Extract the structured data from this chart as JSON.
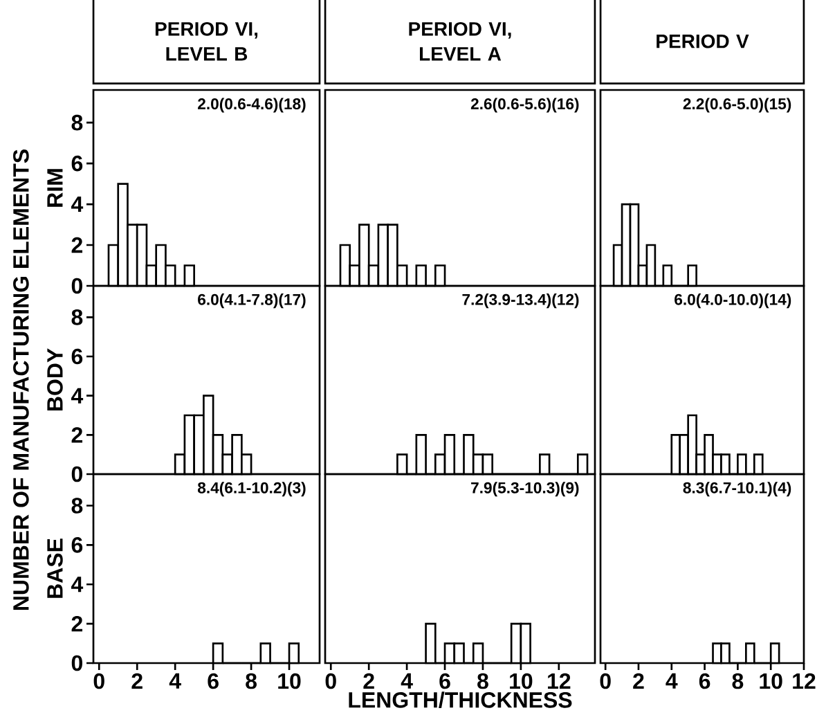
{
  "chart_data": [
    {
      "type": "histogram",
      "title": "PERIOD VI, LEVEL B",
      "ylabel": "RIM",
      "bins": [
        0.5,
        1.0,
        1.5,
        2.0,
        2.5,
        3.0,
        3.5,
        4.0,
        4.5,
        5.0
      ],
      "values": [
        2,
        5,
        3,
        3,
        1,
        2,
        1,
        0,
        1
      ],
      "color": "#000000",
      "xlim": [
        -0.3,
        11.6
      ],
      "ylim": [
        0,
        9.6
      ],
      "xticks": [
        0,
        2,
        4,
        6,
        8,
        10
      ],
      "yticks": [
        0,
        2,
        4,
        6,
        8
      ],
      "tick_labels": "y",
      "annotations": [
        "2.0(0.6-4.6)(18)"
      ]
    },
    {
      "type": "histogram",
      "title": "PERIOD VI, LEVEL A",
      "bins": [
        0.5,
        1.0,
        1.5,
        2.0,
        2.5,
        3.0,
        3.5,
        4.0,
        4.5,
        5.0,
        5.5,
        6.0
      ],
      "values": [
        2,
        1,
        3,
        1,
        3,
        3,
        1,
        0,
        1,
        0,
        1
      ],
      "color": "#000000",
      "xlim": [
        -0.3,
        13.9
      ],
      "ylim": [
        0,
        9.6
      ],
      "xticks": [
        0,
        2,
        4,
        6,
        8,
        10,
        12
      ],
      "yticks": [
        0,
        2,
        4,
        6,
        8
      ],
      "tick_labels": false,
      "annotations": [
        "2.6(0.6-5.6)(16)"
      ]
    },
    {
      "type": "histogram",
      "title": "PERIOD V",
      "bins": [
        0.5,
        1.0,
        1.5,
        2.0,
        2.5,
        3.0,
        3.5,
        4.0,
        4.5,
        5.0,
        5.5
      ],
      "values": [
        2,
        4,
        4,
        1,
        2,
        0,
        1,
        0,
        0,
        1
      ],
      "color": "#000000",
      "xlim": [
        -0.3,
        12
      ],
      "ylim": [
        0,
        9.6
      ],
      "xticks": [
        0,
        2,
        4,
        6,
        8,
        10,
        12
      ],
      "yticks": [
        0,
        2,
        4,
        6,
        8
      ],
      "tick_labels": false,
      "annotations": [
        "2.2(0.6-5.0)(15)"
      ]
    },
    {
      "type": "histogram",
      "ylabel": "BODY",
      "bins": [
        4.0,
        4.5,
        5.0,
        5.5,
        6.0,
        6.5,
        7.0,
        7.5,
        8.0
      ],
      "values": [
        1,
        3,
        3,
        4,
        2,
        1,
        2,
        1
      ],
      "color": "#000000",
      "xlim": [
        -0.3,
        11.6
      ],
      "ylim": [
        0,
        9.6
      ],
      "xticks": [
        0,
        2,
        4,
        6,
        8,
        10
      ],
      "yticks": [
        0,
        2,
        4,
        6,
        8
      ],
      "tick_labels": "y",
      "annotations": [
        "6.0(4.1-7.8)(17)",
        "NUMBER OF MANUFACTURING ELEMENTS"
      ]
    },
    {
      "type": "histogram",
      "bins": [
        3.5,
        4.0,
        4.5,
        5.0,
        5.5,
        6.0,
        6.5,
        7.0,
        7.5,
        8.0,
        8.5,
        9.0,
        9.5,
        10.0,
        10.5,
        11.0,
        11.5,
        12.0,
        12.5,
        13.0,
        13.5
      ],
      "values": [
        1,
        0,
        2,
        0,
        1,
        2,
        0,
        2,
        1,
        1,
        0,
        0,
        0,
        0,
        0,
        1,
        0,
        0,
        0,
        1
      ],
      "color": "#000000",
      "xlim": [
        -0.3,
        13.9
      ],
      "ylim": [
        0,
        9.6
      ],
      "xticks": [
        0,
        2,
        4,
        6,
        8,
        10,
        12
      ],
      "yticks": [
        0,
        2,
        4,
        6,
        8
      ],
      "tick_labels": false,
      "annotations": [
        "7.2(3.9-13.4)(12)"
      ]
    },
    {
      "type": "histogram",
      "bins": [
        4.0,
        4.5,
        5.0,
        5.5,
        6.0,
        6.5,
        7.0,
        7.5,
        8.0,
        8.5,
        9.0,
        9.5
      ],
      "values": [
        2,
        2,
        3,
        1,
        2,
        1,
        1,
        0,
        1,
        0,
        1
      ],
      "color": "#000000",
      "xlim": [
        -0.3,
        12
      ],
      "ylim": [
        0,
        9.6
      ],
      "xticks": [
        0,
        2,
        4,
        6,
        8,
        10,
        12
      ],
      "yticks": [
        0,
        2,
        4,
        6,
        8
      ],
      "tick_labels": false,
      "annotations": [
        "6.0(4.0-10.0)(14)"
      ]
    },
    {
      "type": "histogram",
      "ylabel": "BASE",
      "bins": [
        6.0,
        6.5,
        7.0,
        7.5,
        8.0,
        8.5,
        9.0,
        9.5,
        10.0,
        10.5
      ],
      "values": [
        1,
        0,
        0,
        0,
        0,
        1,
        0,
        0,
        1
      ],
      "color": "#000000",
      "xlim": [
        -0.3,
        11.6
      ],
      "ylim": [
        0,
        9.6
      ],
      "xticks": [
        0,
        2,
        4,
        6,
        8,
        10
      ],
      "yticks": [
        0,
        2,
        4,
        6,
        8
      ],
      "annotations": [
        "8.4(6.1-10.2)(3)"
      ]
    },
    {
      "type": "histogram",
      "xlabel": "LENGTH/THICKNESS",
      "bins": [
        5.0,
        5.5,
        6.0,
        6.5,
        7.0,
        7.5,
        8.0,
        8.5,
        9.0,
        9.5,
        10.0,
        10.5
      ],
      "values": [
        2,
        0,
        1,
        1,
        0,
        1,
        0,
        0,
        0,
        2,
        2
      ],
      "color": "#000000",
      "xlim": [
        -0.3,
        13.9
      ],
      "ylim": [
        0,
        9.6
      ],
      "xticks": [
        0,
        2,
        4,
        6,
        8,
        10,
        12
      ],
      "yticks": [
        0,
        2,
        4,
        6,
        8
      ],
      "tick_labels": "x",
      "annotations": [
        "7.9(5.3-10.3)(9)"
      ]
    },
    {
      "type": "histogram",
      "bins": [
        6.5,
        7.0,
        7.5,
        8.0,
        8.5,
        9.0,
        9.5,
        10.0,
        10.5
      ],
      "values": [
        1,
        1,
        0,
        0,
        1,
        0,
        0,
        1
      ],
      "color": "#000000",
      "xlim": [
        -0.3,
        12
      ],
      "ylim": [
        0,
        9.6
      ],
      "xticks": [
        0,
        2,
        4,
        6,
        8,
        10,
        12
      ],
      "yticks": [
        0,
        2,
        4,
        6,
        8
      ],
      "tick_labels": "x",
      "annotations": [
        "8.3(6.7-10.1)(4)"
      ]
    }
  ]
}
